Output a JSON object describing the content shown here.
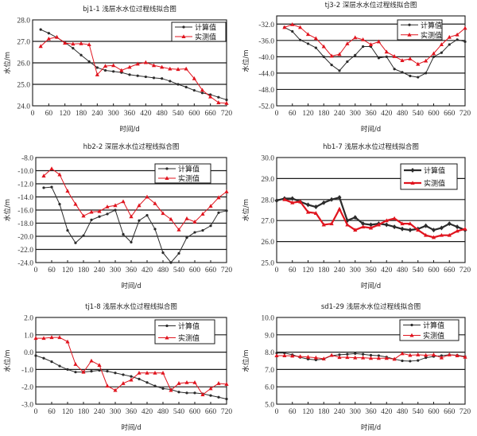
{
  "colors": {
    "calc": "#2b2b2b",
    "meas": "#e0141e",
    "grid": "#1a1a1a"
  },
  "chart_data": [
    {
      "type": "line",
      "title": "bj1-1 浅层水水位过程线拟合图",
      "xlabel": "时间/d",
      "ylabel": "水位/m",
      "xlim": [
        0,
        720
      ],
      "ylim": [
        24.0,
        28.0
      ],
      "xticks": [
        "0",
        "60",
        "120",
        "180",
        "240",
        "300",
        "360",
        "420",
        "480",
        "540",
        "600",
        "660",
        "720"
      ],
      "yticks": [
        "24.0",
        "25.0",
        "26.0",
        "27.0",
        "28.0"
      ],
      "ytick_values": [
        24,
        25,
        26,
        27,
        28
      ],
      "grid": true,
      "legend": "top-right",
      "x": [
        30,
        60,
        90,
        120,
        150,
        180,
        210,
        240,
        270,
        300,
        330,
        360,
        390,
        420,
        450,
        480,
        510,
        540,
        570,
        600,
        630,
        660,
        690,
        720
      ],
      "series": [
        {
          "name": "计算值",
          "marker": "dot",
          "values": [
            27.55,
            27.38,
            27.18,
            26.95,
            26.68,
            26.36,
            26.06,
            25.78,
            25.65,
            25.6,
            25.55,
            25.45,
            25.4,
            25.35,
            25.3,
            25.27,
            25.15,
            25.0,
            24.87,
            24.72,
            24.6,
            24.52,
            24.4,
            24.28
          ]
        },
        {
          "name": "实测值",
          "marker": "triangle",
          "values": [
            26.77,
            27.12,
            27.2,
            26.92,
            26.88,
            26.9,
            26.85,
            25.45,
            25.85,
            25.88,
            25.65,
            25.8,
            25.95,
            26.02,
            25.88,
            25.8,
            25.72,
            25.7,
            25.72,
            25.27,
            24.73,
            24.42,
            24.15,
            24.12
          ]
        }
      ]
    },
    {
      "type": "line",
      "title": "tj3-2 深层水水位过程线拟合图",
      "xlabel": "时间/d",
      "ylabel": "水位/m",
      "xlim": [
        0,
        720
      ],
      "ylim": [
        -52.0,
        -30.0
      ],
      "xticks": [
        "0",
        "60",
        "120",
        "180",
        "240",
        "300",
        "360",
        "420",
        "480",
        "540",
        "600",
        "660",
        "720"
      ],
      "yticks": [
        "-52.0",
        "-48.0",
        "-44.0",
        "-40.0",
        "-36.0",
        "-32.0"
      ],
      "ytick_values": [
        -52,
        -48,
        -44,
        -40,
        -36,
        -32
      ],
      "grid": true,
      "legend": "top-right",
      "x": [
        30,
        60,
        90,
        120,
        150,
        180,
        210,
        240,
        270,
        300,
        330,
        360,
        390,
        420,
        450,
        480,
        510,
        540,
        570,
        600,
        630,
        660,
        690,
        720
      ],
      "series": [
        {
          "name": "计算值",
          "marker": "dot",
          "values": [
            -32.8,
            -33.8,
            -35.9,
            -36.8,
            -37.8,
            -40.0,
            -42.0,
            -43.4,
            -41.2,
            -39.6,
            -37.5,
            -37.5,
            -40.3,
            -40.0,
            -43.0,
            -43.8,
            -44.7,
            -45.0,
            -44.0,
            -40.0,
            -39.0,
            -37.0,
            -35.8,
            -36.3
          ]
        },
        {
          "name": "实测值",
          "marker": "triangle",
          "values": [
            -32.8,
            -32.1,
            -32.8,
            -34.5,
            -35.5,
            -37.5,
            -39.8,
            -39.4,
            -36.8,
            -35.3,
            -35.8,
            -37.0,
            -36.3,
            -38.8,
            -39.9,
            -40.9,
            -40.5,
            -41.8,
            -41.0,
            -39.2,
            -37.0,
            -35.2,
            -34.6,
            -33.0
          ]
        }
      ]
    },
    {
      "type": "line",
      "title": "hb2-2 深层水水位过程线拟合图",
      "xlabel": "时间/d",
      "ylabel": "水位/m",
      "xlim": [
        0,
        720
      ],
      "ylim": [
        -24.0,
        -8.0
      ],
      "xticks": [
        "0",
        "60",
        "120",
        "180",
        "240",
        "300",
        "360",
        "420",
        "480",
        "540",
        "600",
        "660",
        "720"
      ],
      "yticks": [
        "-24.0",
        "-22.0",
        "-20.0",
        "-18.0",
        "-16.0",
        "-14.0",
        "-12.0",
        "-10.0",
        "-8.0"
      ],
      "ytick_values": [
        -24,
        -22,
        -20,
        -18,
        -16,
        -14,
        -12,
        -10,
        -8
      ],
      "grid": true,
      "legend": "top-right",
      "x": [
        30,
        60,
        90,
        120,
        150,
        180,
        210,
        240,
        270,
        300,
        330,
        360,
        390,
        420,
        450,
        480,
        510,
        540,
        570,
        600,
        630,
        660,
        690,
        720
      ],
      "series": [
        {
          "name": "计算值",
          "marker": "dot",
          "values": [
            -12.6,
            -12.5,
            -15.1,
            -19.1,
            -21.0,
            -19.9,
            -17.5,
            -17.0,
            -16.6,
            -16.0,
            -19.7,
            -20.9,
            -17.6,
            -16.8,
            -18.9,
            -22.5,
            -24.0,
            -22.6,
            -20.2,
            -19.4,
            -19.1,
            -18.4,
            -16.4,
            -16.1
          ]
        },
        {
          "name": "实测值",
          "marker": "triangle",
          "values": [
            -10.8,
            -9.7,
            -10.6,
            -13.1,
            -15.1,
            -16.9,
            -16.3,
            -16.2,
            -15.5,
            -15.3,
            -14.7,
            -17.0,
            -15.3,
            -14.0,
            -15.0,
            -16.5,
            -17.4,
            -19.0,
            -17.3,
            -17.8,
            -16.6,
            -15.4,
            -14.1,
            -13.2
          ]
        }
      ]
    },
    {
      "type": "line",
      "title": "hb1-7 浅层水水位过程线拟合图",
      "xlabel": "时间/d",
      "ylabel": "水位/m",
      "xlim": [
        0,
        720
      ],
      "ylim": [
        25.0,
        30.0
      ],
      "xticks": [
        "0",
        "60",
        "120",
        "180",
        "240",
        "300",
        "360",
        "420",
        "480",
        "540",
        "600",
        "660",
        "720"
      ],
      "yticks": [
        "25.0",
        "26.0",
        "27.0",
        "28.0",
        "29.0",
        "30.0"
      ],
      "ytick_values": [
        25,
        26,
        27,
        28,
        29,
        30
      ],
      "grid": true,
      "legend": "top-right",
      "x": [
        0,
        30,
        60,
        90,
        120,
        150,
        180,
        210,
        240,
        270,
        300,
        330,
        360,
        390,
        420,
        450,
        480,
        510,
        540,
        570,
        600,
        630,
        660,
        690,
        720
      ],
      "series": [
        {
          "name": "计算值",
          "marker": "diamond",
          "values": [
            27.95,
            28.05,
            28.05,
            27.9,
            27.75,
            27.65,
            27.85,
            28.0,
            28.1,
            27.0,
            27.15,
            26.85,
            26.8,
            26.85,
            26.8,
            26.7,
            26.6,
            26.55,
            26.6,
            26.75,
            26.55,
            26.65,
            26.85,
            26.7,
            26.55
          ]
        },
        {
          "name": "实测值",
          "marker": "triangle",
          "values": [
            null,
            28.0,
            27.85,
            27.9,
            27.4,
            27.35,
            26.8,
            26.85,
            27.55,
            26.8,
            26.55,
            26.7,
            26.65,
            26.8,
            27.0,
            27.1,
            26.85,
            26.85,
            26.55,
            26.3,
            26.2,
            26.3,
            26.3,
            26.5,
            26.6
          ]
        }
      ]
    },
    {
      "type": "line",
      "title": "tj1-8 浅层水水位过程线拟合图",
      "xlabel": "时间/d",
      "ylabel": "水位/m",
      "xlim": [
        0,
        720
      ],
      "ylim": [
        -3.0,
        2.0
      ],
      "xticks": [
        "0",
        "60",
        "120",
        "180",
        "240",
        "300",
        "360",
        "420",
        "480",
        "540",
        "600",
        "660",
        "720"
      ],
      "yticks": [
        "-3.0",
        "-2.0",
        "-1.0",
        "0.0",
        "1.0",
        "2.0"
      ],
      "ytick_values": [
        -3,
        -2,
        -1,
        0,
        1,
        2
      ],
      "grid": true,
      "legend": "top-right",
      "x": [
        0,
        30,
        60,
        90,
        120,
        150,
        180,
        210,
        240,
        270,
        300,
        330,
        360,
        390,
        420,
        450,
        480,
        510,
        540,
        570,
        600,
        630,
        660,
        690,
        720
      ],
      "series": [
        {
          "name": "计算值",
          "marker": "dot",
          "values": [
            -0.2,
            -0.35,
            -0.55,
            -0.8,
            -1.0,
            -1.15,
            -1.15,
            -1.1,
            -1.05,
            -1.1,
            -1.2,
            -1.3,
            -1.4,
            -1.55,
            -1.75,
            -1.95,
            -2.1,
            -2.15,
            -2.3,
            -2.35,
            -2.35,
            -2.4,
            -2.5,
            -2.6,
            -2.7
          ]
        },
        {
          "name": "实测值",
          "marker": "triangle",
          "values": [
            0.8,
            0.8,
            0.85,
            0.85,
            0.6,
            -0.7,
            -1.15,
            -0.5,
            -0.75,
            -1.95,
            -2.2,
            -1.8,
            -1.6,
            -1.2,
            -1.2,
            -1.2,
            -1.2,
            -2.2,
            -1.8,
            -1.75,
            -1.75,
            -2.45,
            -2.1,
            -1.8,
            -1.85
          ]
        }
      ]
    },
    {
      "type": "line",
      "title": "sd1-29 浅层水水位过程线拟合图",
      "xlabel": "时间/d",
      "ylabel": "水位/m",
      "xlim": [
        0,
        720
      ],
      "ylim": [
        5.0,
        10.0
      ],
      "xticks": [
        "0",
        "60",
        "120",
        "180",
        "240",
        "300",
        "360",
        "420",
        "480",
        "540",
        "600",
        "660",
        "720"
      ],
      "yticks": [
        "5.0",
        "6.0",
        "7.0",
        "8.0",
        "9.0",
        "10.0"
      ],
      "ytick_values": [
        5,
        6,
        7,
        8,
        9,
        10
      ],
      "grid": true,
      "legend": "top-right",
      "x": [
        0,
        30,
        60,
        90,
        120,
        150,
        180,
        210,
        240,
        270,
        300,
        330,
        360,
        390,
        420,
        450,
        480,
        510,
        540,
        570,
        600,
        630,
        660,
        690,
        720
      ],
      "series": [
        {
          "name": "计算值",
          "marker": "dot",
          "values": [
            7.95,
            7.95,
            7.85,
            7.7,
            7.6,
            7.55,
            7.6,
            7.8,
            7.85,
            7.88,
            7.92,
            7.88,
            7.82,
            7.8,
            7.72,
            7.6,
            7.5,
            7.48,
            7.52,
            7.68,
            7.75,
            7.8,
            7.85,
            7.82,
            7.75
          ]
        },
        {
          "name": "实测值",
          "marker": "triangle",
          "values": [
            7.8,
            7.8,
            7.78,
            7.75,
            7.72,
            7.68,
            7.62,
            7.82,
            7.7,
            7.7,
            7.68,
            7.68,
            7.65,
            7.65,
            7.65,
            7.6,
            7.92,
            7.82,
            7.85,
            7.82,
            7.85,
            7.68,
            7.85,
            7.8,
            7.72
          ]
        }
      ]
    }
  ]
}
